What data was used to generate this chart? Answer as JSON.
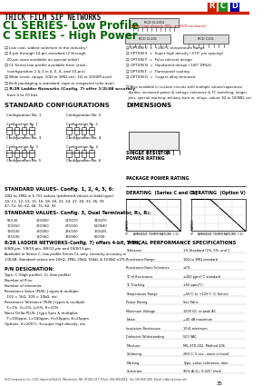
{
  "title_thick": "THICK FILM SIP NETWORKS",
  "title_cl": "CL SERIES- Low Profile",
  "title_c": "C SERIES - High Power",
  "bg_color": "#ffffff",
  "header_line_color": "#555555",
  "green_color": "#228B22",
  "dark_green": "#006400",
  "red_color": "#cc0000",
  "blue_color": "#0000aa",
  "text_color": "#000000",
  "gray_color": "#888888"
}
